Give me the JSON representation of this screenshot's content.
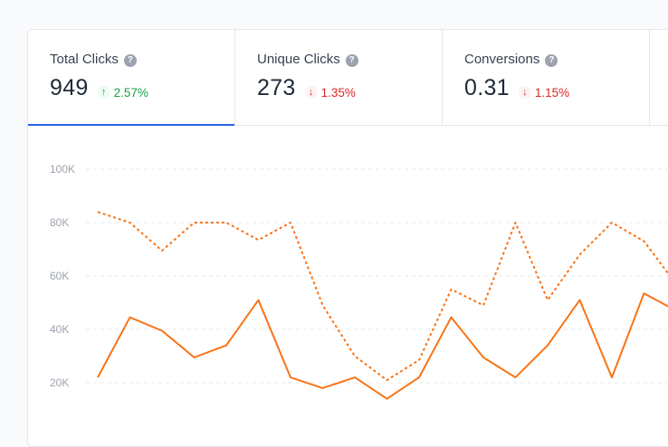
{
  "metrics": [
    {
      "label": "Total Clicks",
      "value": "949",
      "change": "2.57%",
      "direction": "up",
      "active": true
    },
    {
      "label": "Unique Clicks",
      "value": "273",
      "change": "1.35%",
      "direction": "down",
      "active": false
    },
    {
      "label": "Conversions",
      "value": "0.31",
      "change": "1.15%",
      "direction": "down",
      "active": false
    }
  ],
  "icons": {
    "help": "question-circle-icon",
    "trend_up": "arrow-up-icon",
    "trend_down": "arrow-down-icon"
  },
  "help_glyph": "?",
  "colors": {
    "accent": "#2563eb",
    "series": "#f97316",
    "up": "#16a34a",
    "down": "#dc2626"
  },
  "chart_data": {
    "type": "line",
    "y_ticks": [
      "100K",
      "80K",
      "60K",
      "40K",
      "20K"
    ],
    "ylim": [
      0,
      100000
    ],
    "grid": true,
    "series": [
      {
        "style": "dashed",
        "values": [
          84000,
          80000,
          69500,
          80000,
          80000,
          73500,
          80000,
          49000,
          30000,
          21000,
          28500,
          55000,
          49000,
          80000,
          51000,
          68000,
          80000,
          73000,
          57000
        ]
      },
      {
        "style": "solid",
        "values": [
          22000,
          44500,
          39500,
          29500,
          34000,
          51000,
          22000,
          18000,
          22000,
          14000,
          22000,
          44500,
          29500,
          22000,
          34000,
          51000,
          22000,
          53500,
          47000
        ]
      }
    ]
  }
}
